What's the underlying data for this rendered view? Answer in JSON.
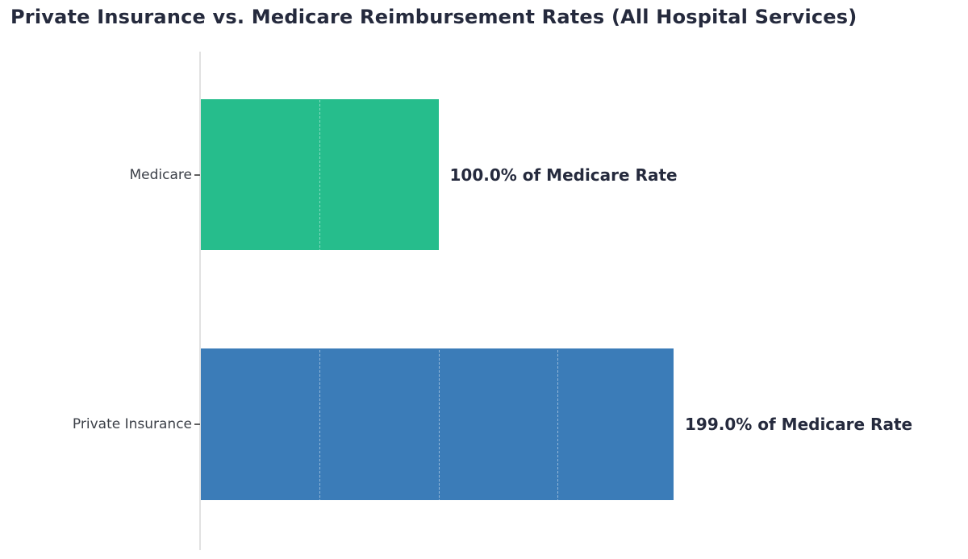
{
  "chart_data": {
    "type": "bar",
    "orientation": "horizontal",
    "title": "Private Insurance vs. Medicare Reimbursement Rates (All Hospital Services)",
    "categories": [
      "Medicare",
      "Private Insurance"
    ],
    "values": [
      100.0,
      199.0
    ],
    "value_labels": [
      "100.0% of Medicare Rate",
      "199.0% of Medicare Rate"
    ],
    "value_unit": "% of Medicare Rate",
    "bar_colors": [
      "#26bd8c",
      "#3b7cb8"
    ],
    "xlabel": "",
    "ylabel": "",
    "xlim": [
      0,
      318
    ],
    "x_tick_labels_visible": false,
    "gridlines": {
      "values": [
        50,
        100,
        150
      ],
      "style": "faint dashed, visible over bars"
    },
    "legend": "none",
    "colors": {
      "title_text": "#252a3d",
      "value_label_text": "#252a3d",
      "tick_label_text": "#3c4048",
      "axis_line": "#e1e1e1",
      "background": "#ffffff"
    }
  }
}
